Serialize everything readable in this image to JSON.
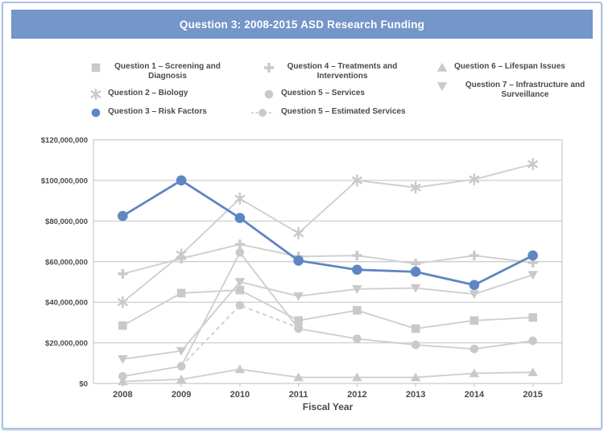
{
  "header": {
    "title": "Question 3: 2008-2015 ASD Research Funding"
  },
  "colors": {
    "header_bg": "#7496c8",
    "panel_border": "#a9c1dd",
    "accent_blue": "#5e86c3",
    "series_gray": "#c9c9c9",
    "grid_line": "#c9c9c9",
    "axis_text": "#4a4a47",
    "title_text": "#ffffff"
  },
  "legend": {
    "icon_names": [
      "square-marker-icon",
      "asterisk-marker-icon",
      "blue-circle-marker-icon",
      "plus-marker-icon",
      "circle-marker-icon",
      "dashed-circle-marker-icon",
      "triangle-up-marker-icon",
      "triangle-down-marker-icon"
    ]
  },
  "chart_data": {
    "type": "line",
    "title": "Question 3: 2008-2015 ASD Research Funding",
    "xlabel": "Fiscal Year",
    "ylabel": "",
    "x": [
      "2008",
      "2009",
      "2010",
      "2011",
      "2012",
      "2013",
      "2014",
      "2015"
    ],
    "ylim": [
      0,
      120000000
    ],
    "ytick_step": 20000000,
    "ytick_format": "$#,##0",
    "grid": true,
    "legend_position": "top",
    "series": [
      {
        "name": "Question 1 – Screening and Diagnosis",
        "marker": "square",
        "style": "solid",
        "role": "gray",
        "values": [
          28500000,
          44500000,
          46000000,
          31000000,
          36000000,
          27000000,
          31000000,
          32500000
        ]
      },
      {
        "name": "Question 2 – Biology",
        "marker": "asterisk",
        "style": "solid",
        "role": "gray",
        "values": [
          40000000,
          63500000,
          91000000,
          74000000,
          100000000,
          96500000,
          100500000,
          108000000
        ]
      },
      {
        "name": "Question 3 – Risk Factors",
        "marker": "circle",
        "style": "solid",
        "role": "accent",
        "values": [
          82500000,
          100000000,
          81500000,
          60500000,
          56000000,
          55000000,
          48500000,
          63000000
        ]
      },
      {
        "name": "Question 4 – Treatments and Interventions",
        "marker": "plus",
        "style": "solid",
        "role": "gray",
        "values": [
          54000000,
          61500000,
          68500000,
          62500000,
          63000000,
          59000000,
          63000000,
          59500000
        ]
      },
      {
        "name": "Question 5 – Services",
        "marker": "circle",
        "style": "solid",
        "role": "gray",
        "values": [
          3500000,
          8500000,
          64500000,
          27000000,
          22000000,
          19000000,
          17000000,
          21000000
        ]
      },
      {
        "name": "Question 5 – Estimated Services",
        "marker": "circle",
        "style": "dashed",
        "role": "gray",
        "values": [
          null,
          8500000,
          38500000,
          27500000,
          null,
          null,
          null,
          null
        ]
      },
      {
        "name": "Question 6 – Lifespan Issues",
        "marker": "triangle-up",
        "style": "solid",
        "role": "gray",
        "values": [
          1000000,
          2000000,
          7000000,
          3000000,
          3000000,
          3000000,
          5000000,
          5500000
        ]
      },
      {
        "name": "Question 7 – Infrastructure and Surveillance",
        "marker": "triangle-down",
        "style": "solid",
        "role": "gray",
        "values": [
          12000000,
          16000000,
          50000000,
          43000000,
          46500000,
          47000000,
          44000000,
          53500000
        ]
      }
    ]
  }
}
